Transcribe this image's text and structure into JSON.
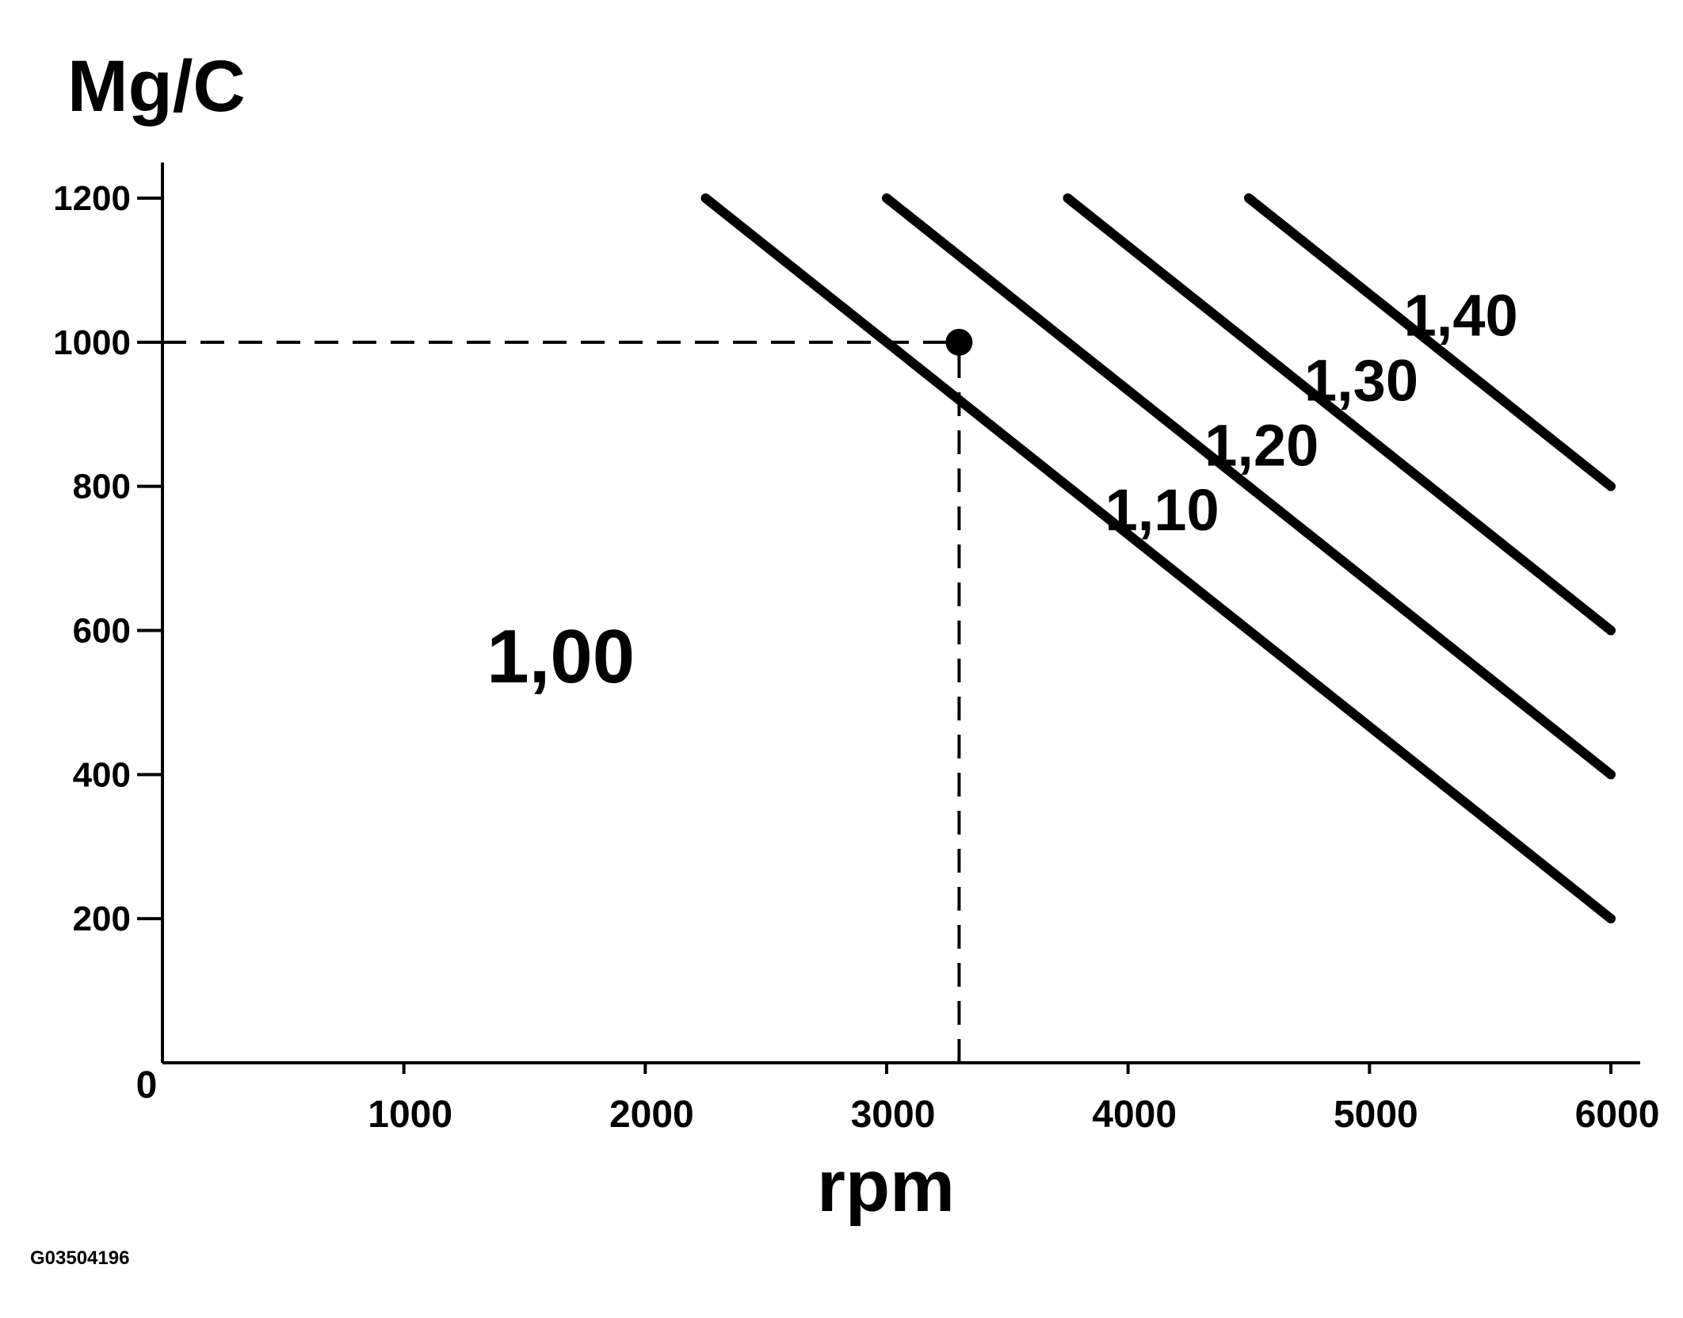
{
  "chart_data": {
    "type": "line",
    "ylabel": "Mg/C",
    "xlabel": "rpm",
    "xlim": [
      0,
      6000
    ],
    "ylim": [
      0,
      1200
    ],
    "x_ticks": [
      1000,
      2000,
      3000,
      4000,
      5000,
      6000
    ],
    "x_tick_labels": [
      "1000",
      "2000",
      "3000",
      "4000",
      "5000",
      "6000"
    ],
    "y_ticks": [
      200,
      400,
      600,
      800,
      1000,
      1200
    ],
    "y_tick_labels": [
      "200",
      "400",
      "600",
      "800",
      "1000",
      "1200"
    ],
    "origin_label": "0",
    "grid": false,
    "series": [
      {
        "name": "1,10",
        "x": [
          2250,
          6000
        ],
        "y": [
          1200,
          200
        ]
      },
      {
        "name": "1,20",
        "x": [
          3000,
          6000
        ],
        "y": [
          1200,
          400
        ]
      },
      {
        "name": "1,30",
        "x": [
          3750,
          6000
        ],
        "y": [
          1200,
          600
        ]
      },
      {
        "name": "1,40",
        "x": [
          4500,
          6000
        ],
        "y": [
          1200,
          800
        ]
      }
    ],
    "region_label": "1,00",
    "marker": {
      "x": 3300,
      "y": 1000
    },
    "reference_lines": [
      {
        "orientation": "horizontal",
        "value": 1000,
        "from": 0,
        "to": 3300,
        "style": "dashed"
      },
      {
        "orientation": "vertical",
        "value": 3300,
        "from": 0,
        "to": 1000,
        "style": "dashed"
      }
    ]
  },
  "figure_code": "G03504196",
  "colors": {
    "ink": "#000000",
    "background": "#ffffff"
  }
}
